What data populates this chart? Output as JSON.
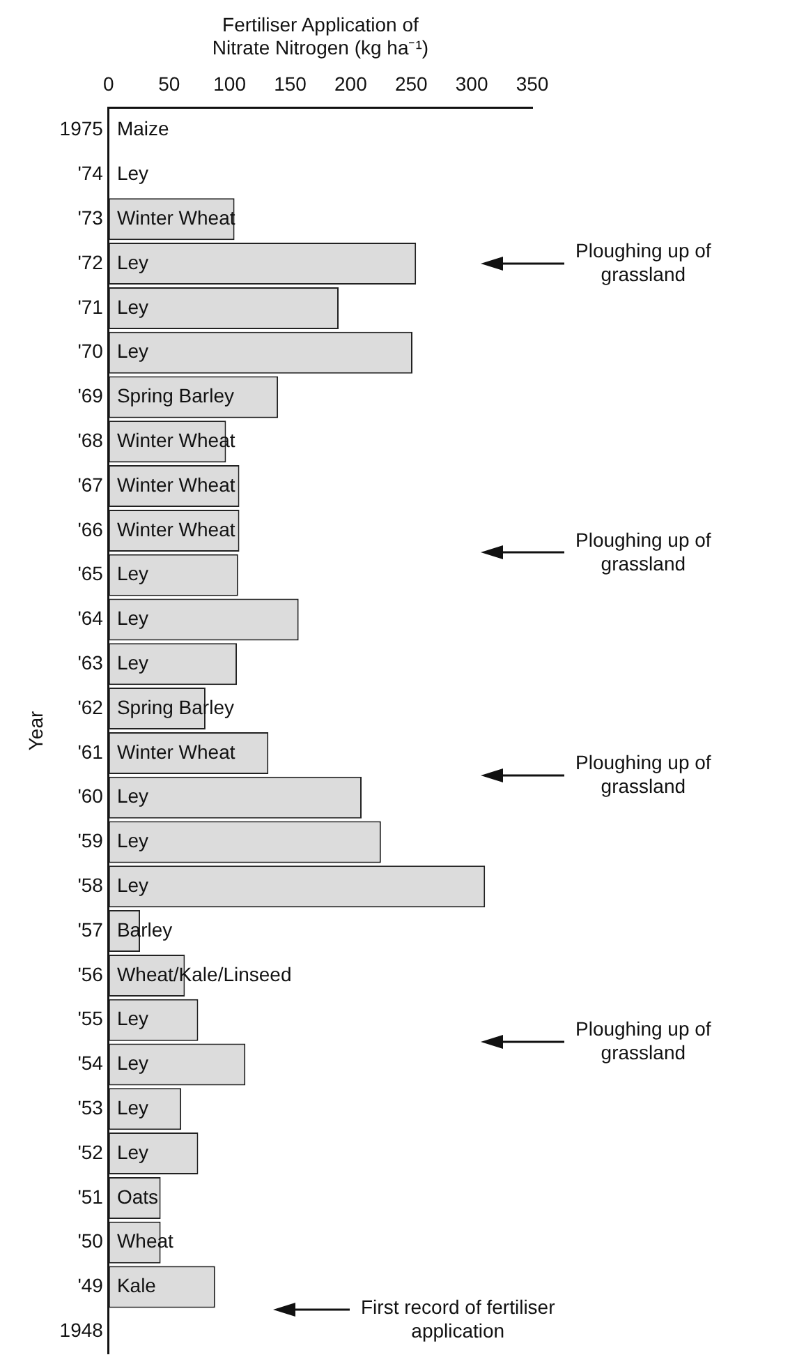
{
  "chart_data": {
    "type": "bar",
    "orientation": "horizontal",
    "xlabel": "Fertiliser Application of Nitrate Nitrogen (kg ha⁻¹)",
    "ylabel": "Year",
    "categories": [
      "1975",
      "'74",
      "'73",
      "'72",
      "'71",
      "'70",
      "'69",
      "'68",
      "'67",
      "'66",
      "'65",
      "'64",
      "'63",
      "'62",
      "'61",
      "'60",
      "'59",
      "'58",
      "'57",
      "'56",
      "'55",
      "'54",
      "'53",
      "'52",
      "'51",
      "'50",
      "'49",
      "1948"
    ],
    "values": [
      null,
      null,
      104,
      254,
      190,
      251,
      140,
      97,
      108,
      108,
      107,
      157,
      106,
      80,
      132,
      209,
      225,
      311,
      26,
      63,
      74,
      113,
      60,
      74,
      43,
      43,
      88,
      null
    ],
    "color": "#dcdcdc",
    "xlim": [
      0,
      350
    ],
    "xticks": [
      0,
      50,
      100,
      150,
      200,
      250,
      300,
      350
    ],
    "grid": false,
    "legend": false,
    "annotations": [
      "Maize",
      "Ley",
      "Winter Wheat",
      "Ley",
      "Ley",
      "Ley",
      "Spring Barley",
      "Winter Wheat",
      "Winter Wheat",
      "Winter Wheat",
      "Ley",
      "Ley",
      "Ley",
      "Spring Barley",
      "Winter Wheat",
      "Ley",
      "Ley",
      "Ley",
      "Barley",
      "Wheat/Kale/Linseed",
      "Ley",
      "Ley",
      "Ley",
      "Ley",
      "Oats",
      "Wheat",
      "Kale",
      "Ploughing up of grassland",
      "Ploughing up of grassland",
      "Ploughing up of grassland",
      "Ploughing up of grassland",
      "First record of fertiliser application"
    ]
  }
}
